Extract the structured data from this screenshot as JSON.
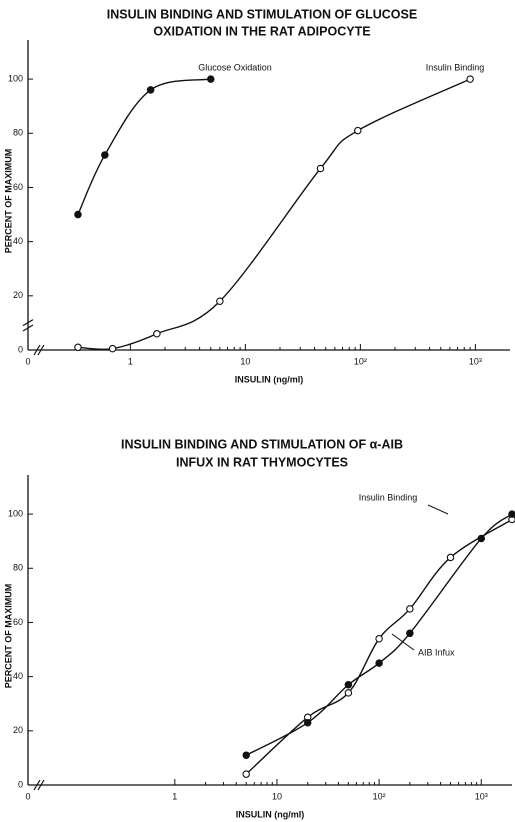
{
  "chart_data": [
    {
      "type": "line",
      "title": [
        "INSULIN BINDING AND STIMULATION OF GLUCOSE",
        "OXIDATION IN THE RAT ADIPOCYTE"
      ],
      "xlabel": "INSULIN (ng/ml)",
      "ylabel": "PERCENT OF MAXIMUM",
      "log_x": true,
      "xlim": [
        0.2,
        2000
      ],
      "ylim": [
        0,
        110
      ],
      "xticks": [
        {
          "value": 0,
          "label": "0"
        },
        1,
        10,
        {
          "value": 100,
          "label": "10²"
        },
        {
          "value": 1000,
          "label": "10³"
        }
      ],
      "yticks": [
        0,
        20,
        40,
        60,
        80,
        100
      ],
      "series": [
        {
          "name": "Glucose Oxidation",
          "color": "#111111",
          "marker": "filled",
          "x": [
            0.35,
            0.6,
            1.5,
            5
          ],
          "values": [
            50,
            72,
            96,
            100
          ]
        },
        {
          "name": "Insulin Binding",
          "color": "#111111",
          "marker": "open",
          "x": [
            0.35,
            0.7,
            1.7,
            6,
            45,
            95,
            900
          ],
          "values": [
            1,
            0.5,
            6,
            18,
            67,
            81,
            100
          ]
        }
      ]
    },
    {
      "type": "line",
      "title": [
        "INSULIN BINDING AND STIMULATION OF α-AIB",
        "INFUX IN RAT THYMOCYTES"
      ],
      "xlabel": "INSULIN (ng/ml)",
      "ylabel": "PERCENT OF MAXIMUM",
      "log_x": true,
      "xlim": [
        0.06,
        2000
      ],
      "ylim": [
        0,
        110
      ],
      "xticks": [
        {
          "value": 0,
          "label": "0"
        },
        1,
        10,
        {
          "value": 100,
          "label": "10²"
        },
        {
          "value": 1000,
          "label": "10³"
        }
      ],
      "yticks": [
        0,
        20,
        40,
        60,
        80,
        100
      ],
      "series": [
        {
          "name": "Insulin Binding",
          "color": "#111111",
          "marker": "open",
          "x": [
            5,
            20,
            50,
            100,
            200,
            500,
            2000
          ],
          "values": [
            4,
            25,
            34,
            54,
            65,
            84,
            98
          ]
        },
        {
          "name": "AIB Infux",
          "color": "#111111",
          "marker": "filled",
          "x": [
            5,
            20,
            50,
            100,
            200,
            1000,
            2000
          ],
          "values": [
            11,
            23,
            37,
            45,
            56,
            91,
            100
          ]
        }
      ]
    }
  ]
}
